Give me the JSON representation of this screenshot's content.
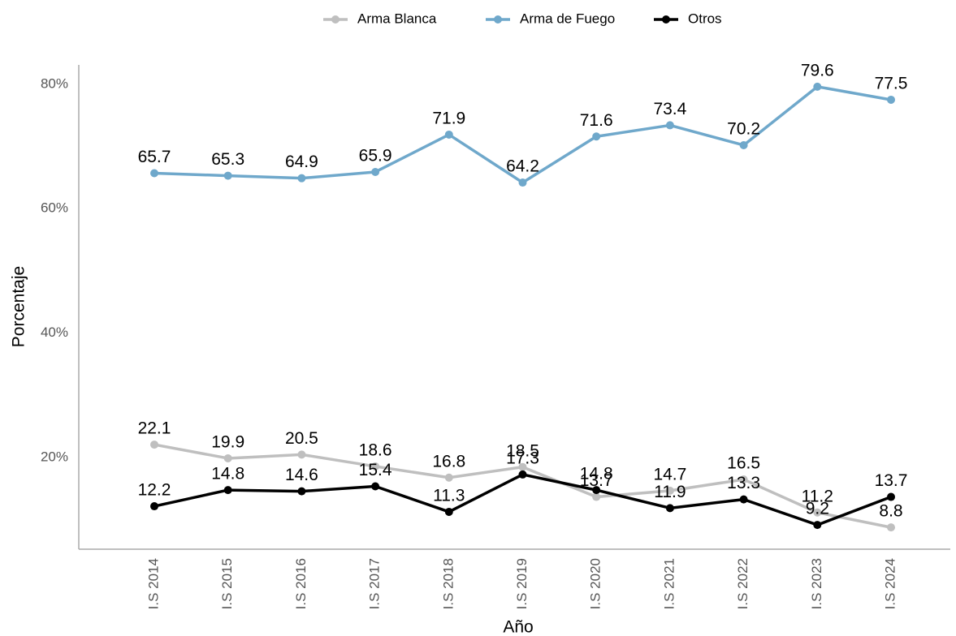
{
  "chart_data": {
    "type": "line",
    "x_label": "Año",
    "y_label": "Porcentaje",
    "categories": [
      "I.S 2014",
      "I.S 2015",
      "I.S 2016",
      "I.S 2017",
      "I.S 2018",
      "I.S 2019",
      "I.S 2020",
      "I.S 2021",
      "I.S 2022",
      "I.S 2023",
      "I.S 2024"
    ],
    "series": [
      {
        "name": "Arma Blanca",
        "color": "#bfbfbf",
        "values": [
          22.1,
          19.9,
          20.5,
          18.6,
          16.8,
          18.5,
          13.7,
          14.7,
          16.5,
          11.2,
          8.8
        ]
      },
      {
        "name": "Arma de Fuego",
        "color": "#6fa8cb",
        "values": [
          65.7,
          65.3,
          64.9,
          65.9,
          71.9,
          64.2,
          71.6,
          73.4,
          70.2,
          79.6,
          77.5
        ]
      },
      {
        "name": "Otros",
        "color": "#000000",
        "values": [
          12.2,
          14.8,
          14.6,
          15.4,
          11.3,
          17.3,
          14.8,
          11.9,
          13.3,
          9.2,
          13.7
        ]
      }
    ],
    "ylim": [
      5.3,
      83.1
    ],
    "yticks": [
      {
        "value": 20,
        "label": "20%"
      },
      {
        "value": 40,
        "label": "40%"
      },
      {
        "value": 60,
        "label": "60%"
      },
      {
        "value": 80,
        "label": "80%"
      }
    ],
    "grid": false,
    "legend": "top"
  }
}
